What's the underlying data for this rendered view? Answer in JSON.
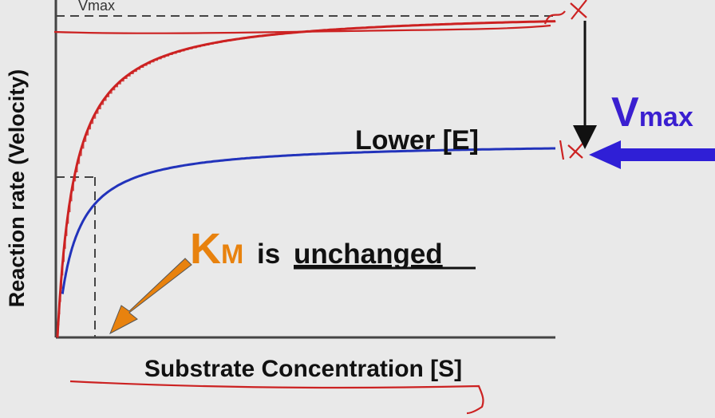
{
  "chart_data": {
    "type": "line",
    "xlabel": "Substrate Concentration [S]",
    "ylabel": "Reaction rate (Velocity)",
    "xlim": [
      0,
      10
    ],
    "ylim": [
      0,
      100
    ],
    "grid": false,
    "series": [
      {
        "name": "",
        "color": "#cc2222",
        "vmax": 97,
        "km": 0.35
      },
      {
        "name": "Lower [E]",
        "color": "#2233bb",
        "vmax": 58,
        "km": 0.35
      }
    ],
    "vmax_axis_label": "Vmax",
    "annotations": {
      "lower_e": "Lower [E]",
      "vmax_letter": "V",
      "vmax_sub": "max",
      "km_letter": "K",
      "km_sub": "M",
      "km_is": "is",
      "km_unchanged": "unchanged"
    },
    "colors": {
      "axis": "#444444",
      "red": "#cc2222",
      "blue": "#2233bb",
      "km_orange": "#e8820e",
      "vmax_blue": "#3a1fd0",
      "text": "#111111",
      "background": "#e9e9e9"
    }
  }
}
